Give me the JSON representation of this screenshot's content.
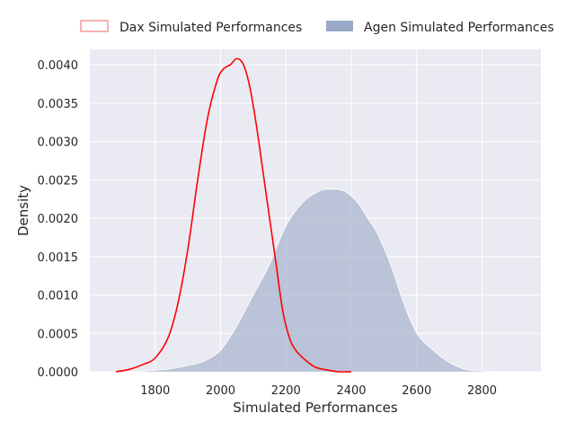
{
  "chart_data": {
    "type": "area",
    "title": "",
    "xlabel": "Simulated Performances",
    "ylabel": "Density",
    "xlim": [
      1600,
      2980
    ],
    "ylim": [
      0,
      0.0042
    ],
    "xticks": [
      1800,
      2000,
      2200,
      2400,
      2600,
      2800
    ],
    "xtick_labels": [
      "1800",
      "2000",
      "2200",
      "2400",
      "2600",
      "2800"
    ],
    "yticks": [
      0,
      0.0005,
      0.001,
      0.0015,
      0.002,
      0.0025,
      0.003,
      0.0035,
      0.004
    ],
    "ytick_labels": [
      "0.0000",
      "0.0005",
      "0.0010",
      "0.0015",
      "0.0020",
      "0.0025",
      "0.0030",
      "0.0035",
      "0.0040"
    ],
    "grid": true,
    "legend_position": "top",
    "series": [
      {
        "name": "Dax Simulated Performances",
        "kind": "line",
        "color": "#ff0000",
        "legend_edge": "#f08080",
        "x": [
          1680,
          1720,
          1760,
          1800,
          1840,
          1870,
          1900,
          1930,
          1960,
          1990,
          2010,
          2030,
          2050,
          2070,
          2090,
          2110,
          2130,
          2150,
          2170,
          2190,
          2210,
          2230,
          2260,
          2290,
          2330,
          2360,
          2400
        ],
        "y": [
          0.0,
          3e-05,
          9e-05,
          0.00018,
          0.00045,
          0.0009,
          0.0016,
          0.0025,
          0.0033,
          0.0038,
          0.00395,
          0.004,
          0.00408,
          0.004,
          0.0037,
          0.0032,
          0.0026,
          0.002,
          0.0014,
          0.0008,
          0.00045,
          0.00028,
          0.00015,
          6e-05,
          2e-05,
          0.0,
          0.0
        ]
      },
      {
        "name": "Agen Simulated Performances",
        "kind": "area",
        "color": "#4c6aa6",
        "fill": "#9aa8c7",
        "x": [
          1730,
          1800,
          1850,
          1900,
          1950,
          2000,
          2050,
          2100,
          2150,
          2200,
          2250,
          2300,
          2340,
          2380,
          2420,
          2450,
          2480,
          2520,
          2560,
          2600,
          2650,
          2700,
          2750,
          2800,
          2850,
          2920
        ],
        "y": [
          0.0,
          2e-05,
          4e-05,
          8e-05,
          0.00014,
          0.00028,
          0.0006,
          0.001,
          0.0014,
          0.0019,
          0.0022,
          0.00235,
          0.00238,
          0.00235,
          0.0022,
          0.002,
          0.0018,
          0.0014,
          0.0009,
          0.0005,
          0.00028,
          0.00012,
          3e-05,
          1e-05,
          0.0,
          0.0
        ]
      }
    ]
  }
}
